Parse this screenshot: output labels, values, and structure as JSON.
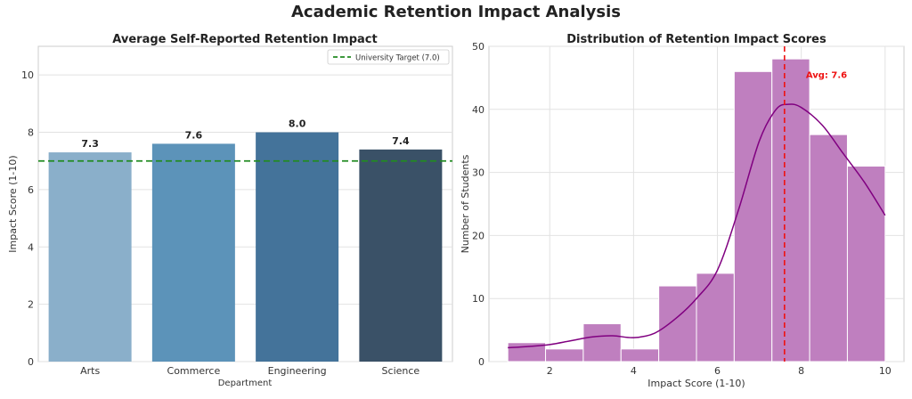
{
  "page_title": "Academic Retention Impact Analysis",
  "chart_data": [
    {
      "type": "bar",
      "title": "Average Self-Reported Retention Impact",
      "xlabel": "Department",
      "ylabel": "Impact Score (1-10)",
      "ylim": [
        0,
        11
      ],
      "yticks": [
        0,
        2,
        4,
        6,
        8,
        10
      ],
      "categories": [
        "Arts",
        "Commerce",
        "Engineering",
        "Science"
      ],
      "values": [
        7.3,
        7.6,
        8.0,
        7.4
      ],
      "value_labels": [
        "7.3",
        "7.6",
        "8.0",
        "7.4"
      ],
      "bar_colors": [
        "#8aafca",
        "#5c93b9",
        "#44739a",
        "#3a5167"
      ],
      "reference_line": {
        "value": 7.0,
        "label": "University Target (7.0)",
        "color": "#228b22"
      },
      "legend_position": "top-right",
      "grid": "y"
    },
    {
      "type": "histogram",
      "title": "Distribution of Retention Impact Scores",
      "xlabel": "Impact Score (1-10)",
      "ylabel": "Number of Students",
      "xlim": [
        0.55,
        10.45
      ],
      "ylim": [
        0,
        50
      ],
      "xticks": [
        2,
        4,
        6,
        8,
        10
      ],
      "yticks": [
        0,
        10,
        20,
        30,
        40,
        50
      ],
      "bin_edges": [
        1.0,
        1.9,
        2.8,
        3.7,
        4.6,
        5.5,
        6.4,
        7.3,
        8.2,
        9.1,
        10.0
      ],
      "counts": [
        3,
        2,
        6,
        2,
        12,
        14,
        46,
        48,
        36,
        31
      ],
      "bar_color": "#bf7fbf",
      "kde": {
        "color": "#800080",
        "x": [
          1.0,
          1.5,
          2.0,
          2.5,
          3.0,
          3.5,
          4.0,
          4.5,
          5.0,
          5.5,
          6.0,
          6.5,
          7.0,
          7.4,
          7.7,
          8.0,
          8.5,
          9.0,
          9.5,
          10.0
        ],
        "y": [
          2.2,
          2.4,
          2.7,
          3.3,
          3.9,
          4.1,
          3.8,
          4.5,
          6.8,
          10.0,
          14.5,
          24.0,
          35.0,
          40.0,
          40.8,
          40.3,
          37.5,
          33.0,
          28.5,
          23.2
        ]
      },
      "mean_line": {
        "value": 7.6,
        "label": "Avg: 7.6",
        "color": "#ee1111"
      },
      "grid": "both"
    }
  ]
}
